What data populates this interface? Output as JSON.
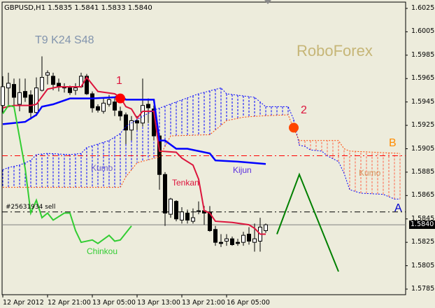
{
  "header": {
    "symbol_info": "GBPUSD,H1  1.5835 1.5841 1.5833 1.5840"
  },
  "overlay_text": {
    "params": "T9 K24 S48",
    "brand": "RoboForex",
    "marker_1": "1",
    "marker_2": "2",
    "kumo_left": "Kumo",
    "kumo_right": "Kumo",
    "kijun": "Kijun",
    "tenkan": "Tenkan",
    "chinkou": "Chinkou",
    "line_b": "B",
    "line_a": "A",
    "sell_order": "#25631934 sell"
  },
  "colors": {
    "background": "#edecdc",
    "tenkan": "#dc143c",
    "kijun": "#0000ff",
    "chinkou": "#32cd32",
    "senkou_a": "#0000ff",
    "senkou_b": "#ff4500",
    "forecast": "#008000",
    "brand": "#c6b677",
    "marker_1": "#ff0000",
    "marker_2": "#ff4500"
  },
  "chart_data": {
    "type": "candlestick",
    "symbol": "GBPUSD",
    "timeframe": "H1",
    "ylim": [
      1.5775,
      1.6035
    ],
    "price_ticks": [
      "1.6025",
      "1.6005",
      "1.5985",
      "1.5965",
      "1.5945",
      "1.5925",
      "1.5905",
      "1.5885",
      "1.5865",
      "1.5845",
      "1.5825",
      "1.5805",
      "1.5785"
    ],
    "time_ticks": [
      {
        "t": "12 Apr 13:00",
        "label": "12 Apr 2012"
      },
      {
        "t": "12 Apr 21:00",
        "label": "12 Apr 21:00"
      },
      {
        "t": "13 Apr 05:00",
        "label": "13 Apr 05:00"
      },
      {
        "t": "13 Apr 13:00",
        "label": "13 Apr 13:00"
      },
      {
        "t": "13 Apr 21:00",
        "label": "13 Apr 21:00"
      },
      {
        "t": "16 Apr 05:00",
        "label": "16 Apr 05:00"
      }
    ],
    "bid": "1.5840",
    "candles_ohlc": [
      [
        "12 Apr 13:00",
        1.5942,
        1.5967,
        1.5936,
        1.5958
      ],
      [
        "12 Apr 14:00",
        1.5957,
        1.597,
        1.5942,
        1.5961
      ],
      [
        "12 Apr 15:00",
        1.596,
        1.5965,
        1.5942,
        1.5949
      ],
      [
        "12 Apr 16:00",
        1.5943,
        1.5965,
        1.5937,
        1.5953
      ],
      [
        "12 Apr 17:00",
        1.5954,
        1.5965,
        1.5945,
        1.5949
      ],
      [
        "12 Apr 18:00",
        1.5951,
        1.5955,
        1.593,
        1.5936
      ],
      [
        "12 Apr 19:00",
        1.5936,
        1.5966,
        1.5933,
        1.5957
      ],
      [
        "12 Apr 20:00",
        1.5955,
        1.5984,
        1.5954,
        1.5966
      ],
      [
        "12 Apr 21:00",
        1.5968,
        1.5972,
        1.596,
        1.597
      ],
      [
        "12 Apr 22:00",
        1.5967,
        1.597,
        1.5955,
        1.596
      ],
      [
        "12 Apr 23:00",
        1.5961,
        1.5965,
        1.5954,
        1.5958
      ],
      [
        "13 Apr 00:00",
        1.5958,
        1.5961,
        1.5953,
        1.5957
      ],
      [
        "13 Apr 01:00",
        1.5957,
        1.5959,
        1.5951,
        1.5953
      ],
      [
        "13 Apr 02:00",
        1.5955,
        1.5961,
        1.5951,
        1.5957
      ],
      [
        "13 Apr 03:00",
        1.5958,
        1.597,
        1.5957,
        1.5967
      ],
      [
        "13 Apr 04:00",
        1.5967,
        1.5969,
        1.5951,
        1.5952
      ],
      [
        "13 Apr 05:00",
        1.5952,
        1.5954,
        1.5936,
        1.594
      ],
      [
        "13 Apr 06:00",
        1.5941,
        1.5943,
        1.5936,
        1.5938
      ],
      [
        "13 Apr 07:00",
        1.5937,
        1.5948,
        1.5935,
        1.5944
      ],
      [
        "13 Apr 08:00",
        1.5943,
        1.5951,
        1.5941,
        1.5947
      ],
      [
        "13 Apr 09:00",
        1.5945,
        1.5949,
        1.5933,
        1.5938
      ],
      [
        "13 Apr 10:00",
        1.5937,
        1.5941,
        1.5929,
        1.5933
      ],
      [
        "13 Apr 11:00",
        1.5934,
        1.5936,
        1.5909,
        1.5921
      ],
      [
        "13 Apr 12:00",
        1.5921,
        1.5933,
        1.5912,
        1.5929
      ],
      [
        "13 Apr 13:00",
        1.5929,
        1.5933,
        1.5921,
        1.5927
      ],
      [
        "13 Apr 14:00",
        1.5927,
        1.5965,
        1.5924,
        1.5942
      ],
      [
        "13 Apr 15:00",
        1.5943,
        1.5948,
        1.5927,
        1.594
      ],
      [
        "13 Apr 16:00",
        1.5939,
        1.5942,
        1.5912,
        1.5916
      ],
      [
        "13 Apr 17:00",
        1.5916,
        1.5918,
        1.587,
        1.5883
      ],
      [
        "13 Apr 18:00",
        1.5883,
        1.5885,
        1.5839,
        1.585
      ],
      [
        "13 Apr 19:00",
        1.5849,
        1.5863,
        1.5846,
        1.5862
      ],
      [
        "13 Apr 20:00",
        1.586,
        1.5861,
        1.5843,
        1.5845
      ],
      [
        "13 Apr 21:00",
        1.5844,
        1.5855,
        1.5841,
        1.5851
      ],
      [
        "13 Apr 22:00",
        1.585,
        1.5853,
        1.5841,
        1.5844
      ],
      [
        "13 Apr 23:00",
        1.5843,
        1.5854,
        1.5841,
        1.5846
      ],
      [
        "16 Apr 00:00",
        1.5852,
        1.586,
        1.5849,
        1.5852
      ],
      [
        "16 Apr 01:00",
        1.5852,
        1.5856,
        1.584,
        1.585
      ],
      [
        "16 Apr 02:00",
        1.5851,
        1.5856,
        1.5834,
        1.5835
      ],
      [
        "16 Apr 03:00",
        1.5836,
        1.5839,
        1.5822,
        1.5825
      ],
      [
        "16 Apr 04:00",
        1.5825,
        1.5832,
        1.5821,
        1.5824
      ],
      [
        "16 Apr 05:00",
        1.5826,
        1.5832,
        1.5822,
        1.5828
      ],
      [
        "16 Apr 06:00",
        1.5828,
        1.583,
        1.5822,
        1.5823
      ],
      [
        "16 Apr 07:00",
        1.5825,
        1.5828,
        1.5822,
        1.5824
      ],
      [
        "16 Apr 08:00",
        1.5825,
        1.5834,
        1.5822,
        1.5831
      ],
      [
        "16 Apr 09:00",
        1.5832,
        1.5838,
        1.5823,
        1.5826
      ],
      [
        "16 Apr 10:00",
        1.5825,
        1.5841,
        1.5817,
        1.5828
      ],
      [
        "16 Apr 11:00",
        1.5826,
        1.5846,
        1.5817,
        1.5838
      ],
      [
        "16 Apr 12:00",
        1.5835,
        1.5841,
        1.5833,
        1.584
      ]
    ],
    "series": [
      {
        "name": "Tenkan",
        "points": [
          [
            "12 Apr 13:00",
            1.594
          ],
          [
            "12 Apr 15:00",
            1.5942
          ],
          [
            "12 Apr 18:00",
            1.5942
          ],
          [
            "12 Apr 19:00",
            1.5943
          ],
          [
            "12 Apr 21:00",
            1.5956
          ],
          [
            "12 Apr 23:00",
            1.5958
          ],
          [
            "13 Apr 03:00",
            1.5958
          ],
          [
            "13 Apr 04:00",
            1.5966
          ],
          [
            "13 Apr 06:00",
            1.5954
          ],
          [
            "13 Apr 09:00",
            1.5952
          ],
          [
            "13 Apr 10:00",
            1.5949
          ],
          [
            "13 Apr 11:00",
            1.5941
          ],
          [
            "13 Apr 12:00",
            1.5939
          ],
          [
            "13 Apr 13:00",
            1.5931
          ],
          [
            "13 Apr 14:00",
            1.5937
          ],
          [
            "13 Apr 16:00",
            1.5937
          ],
          [
            "13 Apr 17:00",
            1.5903
          ],
          [
            "13 Apr 20:00",
            1.5902
          ],
          [
            "13 Apr 21:00",
            1.5897
          ],
          [
            "13 Apr 23:00",
            1.5891
          ],
          [
            "16 Apr 00:00",
            1.5879
          ],
          [
            "16 Apr 01:00",
            1.5852
          ],
          [
            "16 Apr 02:00",
            1.585
          ],
          [
            "16 Apr 03:00",
            1.5843
          ],
          [
            "16 Apr 06:00",
            1.5842
          ],
          [
            "16 Apr 09:00",
            1.584
          ],
          [
            "16 Apr 10:00",
            1.5837
          ],
          [
            "16 Apr 11:00",
            1.5832
          ],
          [
            "16 Apr 12:00",
            1.5832
          ]
        ]
      },
      {
        "name": "Kijun",
        "points": [
          [
            "12 Apr 13:00",
            1.5926
          ],
          [
            "12 Apr 17:00",
            1.5928
          ],
          [
            "12 Apr 19:00",
            1.5934
          ],
          [
            "12 Apr 20:00",
            1.5941
          ],
          [
            "12 Apr 22:00",
            1.5943
          ],
          [
            "13 Apr 01:00",
            1.5948
          ],
          [
            "13 Apr 05:00",
            1.5948
          ],
          [
            "13 Apr 09:00",
            1.5949
          ],
          [
            "13 Apr 10:00",
            1.5951
          ],
          [
            "13 Apr 11:00",
            1.5947
          ],
          [
            "13 Apr 16:00",
            1.5947
          ],
          [
            "13 Apr 17:00",
            1.5912
          ],
          [
            "13 Apr 18:00",
            1.5912
          ],
          [
            "13 Apr 20:00",
            1.5905
          ],
          [
            "13 Apr 22:00",
            1.5905
          ],
          [
            "16 Apr 02:00",
            1.5901
          ],
          [
            "16 Apr 03:00",
            1.5895
          ],
          [
            "16 Apr 07:00",
            1.5894
          ],
          [
            "16 Apr 12:00",
            1.5892
          ]
        ]
      },
      {
        "name": "Chinkou",
        "points": [
          [
            "12 Apr 13:00",
            1.5935
          ],
          [
            "12 Apr 14:00",
            1.5942
          ],
          [
            "12 Apr 15:00",
            1.5941
          ],
          [
            "12 Apr 17:00",
            1.5888
          ],
          [
            "12 Apr 18:00",
            1.585
          ],
          [
            "12 Apr 19:00",
            1.5861
          ],
          [
            "12 Apr 20:00",
            1.5846
          ],
          [
            "12 Apr 21:00",
            1.585
          ],
          [
            "12 Apr 22:00",
            1.5844
          ],
          [
            "13 Apr 00:00",
            1.585
          ],
          [
            "13 Apr 01:00",
            1.585
          ],
          [
            "13 Apr 02:00",
            1.5835
          ],
          [
            "13 Apr 03:00",
            1.5825
          ],
          [
            "13 Apr 05:00",
            1.5827
          ],
          [
            "13 Apr 06:00",
            1.5824
          ],
          [
            "13 Apr 08:00",
            1.5831
          ],
          [
            "13 Apr 09:00",
            1.5826
          ],
          [
            "13 Apr 10:00",
            1.5827
          ],
          [
            "13 Apr 12:00",
            1.5839
          ]
        ]
      },
      {
        "name": "A",
        "points": [
          [
            "12 Apr 13:00",
            1.5887
          ],
          [
            "12 Apr 14:00",
            1.5889
          ],
          [
            "12 Apr 16:00",
            1.5891
          ],
          [
            "12 Apr 17:00",
            1.5893
          ],
          [
            "12 Apr 18:00",
            1.5895
          ],
          [
            "12 Apr 19:00",
            1.59
          ],
          [
            "12 Apr 21:00",
            1.5901
          ],
          [
            "13 Apr 01:00",
            1.59
          ],
          [
            "13 Apr 03:00",
            1.5901
          ],
          [
            "13 Apr 04:00",
            1.5906
          ],
          [
            "13 Apr 06:00",
            1.5909
          ],
          [
            "13 Apr 08:00",
            1.5912
          ],
          [
            "13 Apr 09:00",
            1.5915
          ],
          [
            "13 Apr 10:00",
            1.5918
          ],
          [
            "13 Apr 11:00",
            1.5924
          ],
          [
            "13 Apr 13:00",
            1.593
          ],
          [
            "13 Apr 16:00",
            1.5938
          ],
          [
            "13 Apr 20:00",
            1.5945
          ],
          [
            "16 Apr 00:00",
            1.5952
          ],
          [
            "16 Apr 04:00",
            1.5957
          ],
          [
            "16 Apr 05:00",
            1.5952
          ],
          [
            "16 Apr 10:00",
            1.5949
          ],
          [
            "16 Apr 12:00",
            1.5941
          ],
          [
            "16 Apr 16:00",
            1.5941
          ],
          [
            "16 Apr 17:00",
            1.593
          ],
          [
            "16 Apr 18:00",
            1.5908
          ],
          [
            "16 Apr 19:00",
            1.5907
          ],
          [
            "16 Apr 20:00",
            1.5904
          ],
          [
            "16 Apr 22:00",
            1.5903
          ],
          [
            "16 Apr 23:00",
            1.5899
          ],
          [
            "17 Apr 01:00",
            1.5894
          ],
          [
            "17 Apr 02:00",
            1.5884
          ],
          [
            "17 Apr 03:00",
            1.587
          ],
          [
            "17 Apr 05:00",
            1.5867
          ],
          [
            "17 Apr 09:00",
            1.5866
          ],
          [
            "17 Apr 11:00",
            1.5862
          ],
          [
            "17 Apr 12:00",
            1.5862
          ]
        ]
      },
      {
        "name": "B",
        "points": [
          [
            "12 Apr 13:00",
            1.5872
          ],
          [
            "13 Apr 10:00",
            1.5872
          ],
          [
            "13 Apr 11:00",
            1.5881
          ],
          [
            "13 Apr 12:00",
            1.5887
          ],
          [
            "13 Apr 13:00",
            1.5893
          ],
          [
            "13 Apr 17:00",
            1.5898
          ],
          [
            "13 Apr 19:00",
            1.5916
          ],
          [
            "16 Apr 02:00",
            1.5917
          ],
          [
            "16 Apr 03:00",
            1.5921
          ],
          [
            "16 Apr 05:00",
            1.5929
          ],
          [
            "16 Apr 08:00",
            1.5932
          ],
          [
            "16 Apr 11:00",
            1.5933
          ],
          [
            "16 Apr 16:00",
            1.5934
          ],
          [
            "16 Apr 17:00",
            1.5922
          ],
          [
            "16 Apr 18:00",
            1.5912
          ],
          [
            "17 Apr 01:00",
            1.5912
          ],
          [
            "17 Apr 02:00",
            1.5905
          ],
          [
            "17 Apr 03:00",
            1.5903
          ],
          [
            "17 Apr 12:00",
            1.5901
          ]
        ]
      },
      {
        "name": "forecast",
        "points": [
          [
            "16 Apr 14:00",
            1.5832
          ],
          [
            "16 Apr 18:00",
            1.5883
          ],
          [
            "17 Apr 01:00",
            1.58
          ]
        ]
      }
    ],
    "horizontal_lines": [
      {
        "kind": "level",
        "price": 1.5899,
        "style": "dash-dot",
        "color": "#ff0000"
      },
      {
        "kind": "sell_order",
        "price": 1.5851,
        "style": "dash-dot",
        "color": "#000000"
      },
      {
        "kind": "bid",
        "price": 1.584,
        "style": "solid",
        "color": "#808080"
      }
    ],
    "markers": [
      {
        "label": "1",
        "t": "13 Apr 10:00",
        "price": 1.5948
      },
      {
        "label": "2",
        "t": "16 Apr 17:00",
        "price": 1.5923
      }
    ]
  }
}
